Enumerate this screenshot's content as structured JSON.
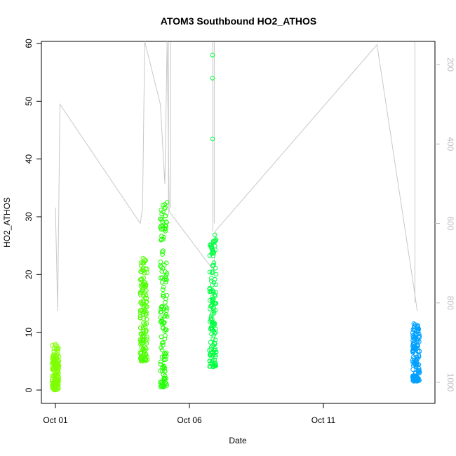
{
  "chart_data": {
    "type": "scatter",
    "title": "ATOM3 Southbound HO2_ATHOS",
    "xlabel": "Date",
    "ylabel": "HO2_ATHOS",
    "x_ticks": [
      "Oct 01",
      "Oct 06",
      "Oct 11"
    ],
    "xlim": [
      "2016-09-30T04:00",
      "2016-10-15T00:00"
    ],
    "ylim": [
      0,
      60
    ],
    "y_ticks": [
      0,
      10,
      20,
      30,
      40,
      50,
      60
    ],
    "y2_label": "",
    "y2_ticks": [
      200,
      400,
      600,
      800,
      1000
    ],
    "y2_reversed": true,
    "grid": false,
    "legend": "none",
    "colors": {
      "axis": "#000000",
      "right_axis": "#bdbdbd",
      "altitude_line": "#c8c8c8"
    },
    "series": [
      {
        "color": "#7FFF00",
        "clusters": [
          {
            "x": "2016-10-01T00:00",
            "y_range": [
              0,
              8
            ]
          }
        ]
      },
      {
        "color": "#4CFF00",
        "clusters": [
          {
            "x": "2016-10-04T07:00",
            "y_range": [
              5,
              23
            ]
          }
        ]
      },
      {
        "color": "#20FF00",
        "clusters": [
          {
            "x": "2016-10-05T01:00",
            "y_range": [
              0.5,
              33
            ]
          }
        ]
      },
      {
        "color": "#00FF40",
        "clusters": [
          {
            "x": "2016-10-06T21:00",
            "y_range": [
              4,
              27
            ]
          }
        ],
        "outliers": [
          [
            "2016-10-06T20:40",
            58
          ],
          [
            "2016-10-06T20:40",
            54
          ],
          [
            "2016-10-06T20:40",
            43.5
          ]
        ]
      },
      {
        "color": "#00A0FF",
        "clusters": [
          {
            "x": "2016-10-14T11:00",
            "y_range": [
              1.5,
              11.5
            ]
          }
        ]
      }
    ],
    "secondary_series": {
      "name": "",
      "type": "line",
      "axis": "right",
      "points": [
        [
          "2016-10-01T00:00",
          560
        ],
        [
          "2016-10-01T02:00",
          820
        ],
        [
          "2016-10-01T04:00",
          300
        ],
        [
          "2016-10-04T04:00",
          600
        ],
        [
          "2016-10-04T06:00",
          560
        ],
        [
          "2016-10-04T08:00",
          100
        ],
        [
          "2016-10-04T22:00",
          300
        ],
        [
          "2016-10-05T02:00",
          500
        ],
        [
          "2016-10-05T04:00",
          50
        ],
        [
          "2016-10-05T06:00",
          570
        ],
        [
          "2016-10-06T22:00",
          720
        ],
        [
          "2016-10-06T23:00",
          620
        ],
        [
          "2016-10-13T00:00",
          150
        ],
        [
          "2016-10-14T10:00",
          780
        ],
        [
          "2016-10-14T12:00",
          820
        ]
      ]
    }
  }
}
